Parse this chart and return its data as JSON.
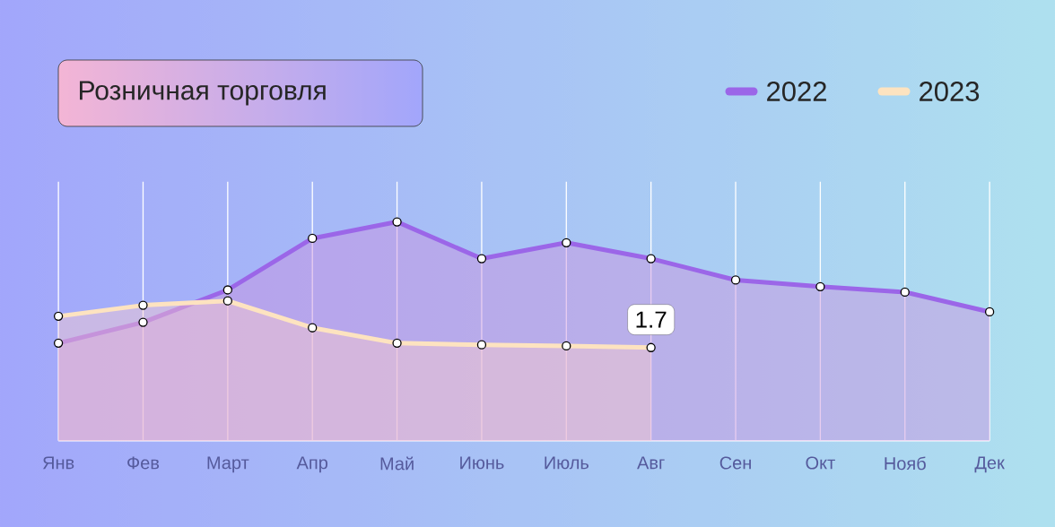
{
  "chart_data": {
    "type": "area",
    "title": "Розничная торговля",
    "categories": [
      "Янв",
      "Фев",
      "Март",
      "Апр",
      "Май",
      "Июнь",
      "Июль",
      "Авг",
      "Сен",
      "Окт",
      "Нояб",
      "Дек"
    ],
    "ylim": [
      0,
      4.72
    ],
    "grid": "x",
    "legend": "top right",
    "marker": "circle",
    "series": [
      {
        "name": "2022",
        "color": "#9b66e8",
        "values": [
          1.78,
          2.16,
          2.75,
          3.69,
          3.99,
          3.32,
          3.61,
          3.32,
          2.93,
          2.81,
          2.71,
          2.35
        ]
      },
      {
        "name": "2023",
        "color": "#fde3c0",
        "values": [
          2.27,
          2.47,
          2.55,
          2.06,
          1.78,
          1.75,
          1.73,
          1.7,
          null,
          null,
          null,
          null
        ],
        "value_labels": [
          null,
          null,
          null,
          null,
          null,
          null,
          null,
          "1.7",
          null,
          null,
          null,
          null
        ]
      }
    ]
  }
}
